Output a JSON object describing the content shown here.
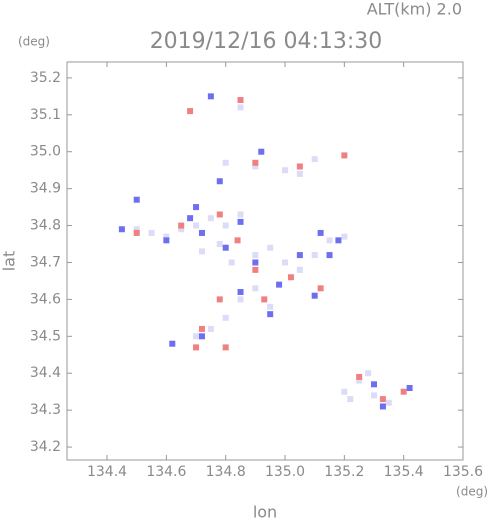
{
  "chart_data": {
    "type": "scatter",
    "title": "2019/12/16 04:13:30",
    "annotation": "ALT(km) 2.0",
    "y_unit": "(deg)",
    "x_unit": "(deg)",
    "xlabel": "lon",
    "ylabel": "lat",
    "xlim": [
      134.265,
      135.6
    ],
    "ylim": [
      34.165,
      35.243
    ],
    "xticks": [
      134.4,
      134.6,
      134.8,
      {
        "value": 135,
        "label": "135.0"
      },
      135.2,
      135.4,
      135.6
    ],
    "yticks": [
      34.2,
      34.3,
      34.4,
      34.5,
      34.6,
      34.7,
      34.8,
      34.9,
      {
        "value": 35,
        "label": "35.0"
      },
      35.1,
      35.2
    ],
    "series": [
      {
        "color": "#dcdcf8",
        "x": [
          134.5,
          134.55,
          134.6,
          134.65,
          134.7,
          134.75,
          134.8,
          134.85,
          134.78,
          134.72,
          134.82,
          134.9,
          134.95,
          135.0,
          135.05,
          135.1,
          135.15,
          135.2,
          134.85,
          134.8,
          134.75,
          134.7,
          134.9,
          134.95,
          135.2,
          135.25,
          135.3,
          135.35,
          135.28,
          135.22,
          134.8,
          134.9,
          135.0,
          135.05,
          135.1,
          134.85
        ],
        "values": [
          34.79,
          34.78,
          34.77,
          34.79,
          34.8,
          34.82,
          34.8,
          34.83,
          34.75,
          34.73,
          34.7,
          34.72,
          34.74,
          34.7,
          34.68,
          34.72,
          34.76,
          34.77,
          34.6,
          34.55,
          34.52,
          34.5,
          34.63,
          34.58,
          34.35,
          34.38,
          34.34,
          34.32,
          34.4,
          34.33,
          34.97,
          34.96,
          34.95,
          34.94,
          34.98,
          35.12
        ]
      },
      {
        "color": "#6e6ef0",
        "x": [
          134.45,
          134.6,
          134.7,
          134.72,
          134.8,
          134.85,
          134.9,
          134.98,
          135.05,
          135.12,
          135.3,
          135.33,
          134.72,
          134.85,
          134.62,
          134.95,
          135.1,
          135.18,
          134.5,
          134.75,
          135.42,
          134.78,
          134.92,
          134.68,
          135.15
        ],
        "values": [
          34.79,
          34.76,
          34.85,
          34.78,
          34.74,
          34.81,
          34.7,
          34.64,
          34.72,
          34.78,
          34.37,
          34.31,
          34.5,
          34.62,
          34.48,
          34.56,
          34.61,
          34.76,
          34.87,
          35.15,
          34.36,
          34.92,
          35.0,
          34.82,
          34.72
        ]
      },
      {
        "color": "#f08080",
        "x": [
          134.5,
          134.65,
          134.78,
          134.84,
          134.9,
          134.72,
          134.8,
          134.93,
          135.02,
          135.12,
          135.2,
          135.33,
          135.4,
          134.68,
          134.85,
          134.9,
          135.05,
          135.25,
          134.7,
          134.78
        ],
        "values": [
          34.78,
          34.8,
          34.83,
          34.76,
          34.68,
          34.52,
          34.47,
          34.6,
          34.66,
          34.63,
          34.99,
          34.33,
          34.35,
          35.11,
          35.14,
          34.97,
          34.96,
          34.39,
          34.47,
          34.6
        ]
      }
    ]
  }
}
